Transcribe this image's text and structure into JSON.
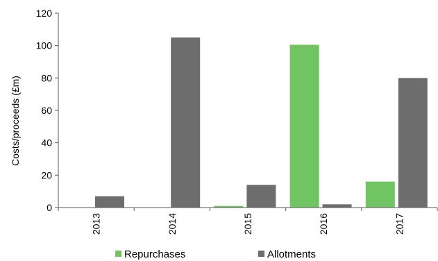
{
  "chart_data": {
    "type": "bar",
    "title": "",
    "xlabel": "",
    "ylabel": "Costs/proceeds (£m)",
    "ylim": [
      0,
      120
    ],
    "yticks": [
      0,
      20,
      40,
      60,
      80,
      100,
      120
    ],
    "categories": [
      "2013",
      "2014",
      "2015",
      "2016",
      "2017"
    ],
    "series": [
      {
        "name": "Repurchases",
        "color": "#70c462",
        "values": [
          0,
          0,
          1,
          100.5,
          16
        ]
      },
      {
        "name": "Allotments",
        "color": "#6d6d6d",
        "values": [
          7,
          105,
          14,
          2,
          80
        ]
      }
    ],
    "grid": false,
    "legend_position": "bottom"
  }
}
